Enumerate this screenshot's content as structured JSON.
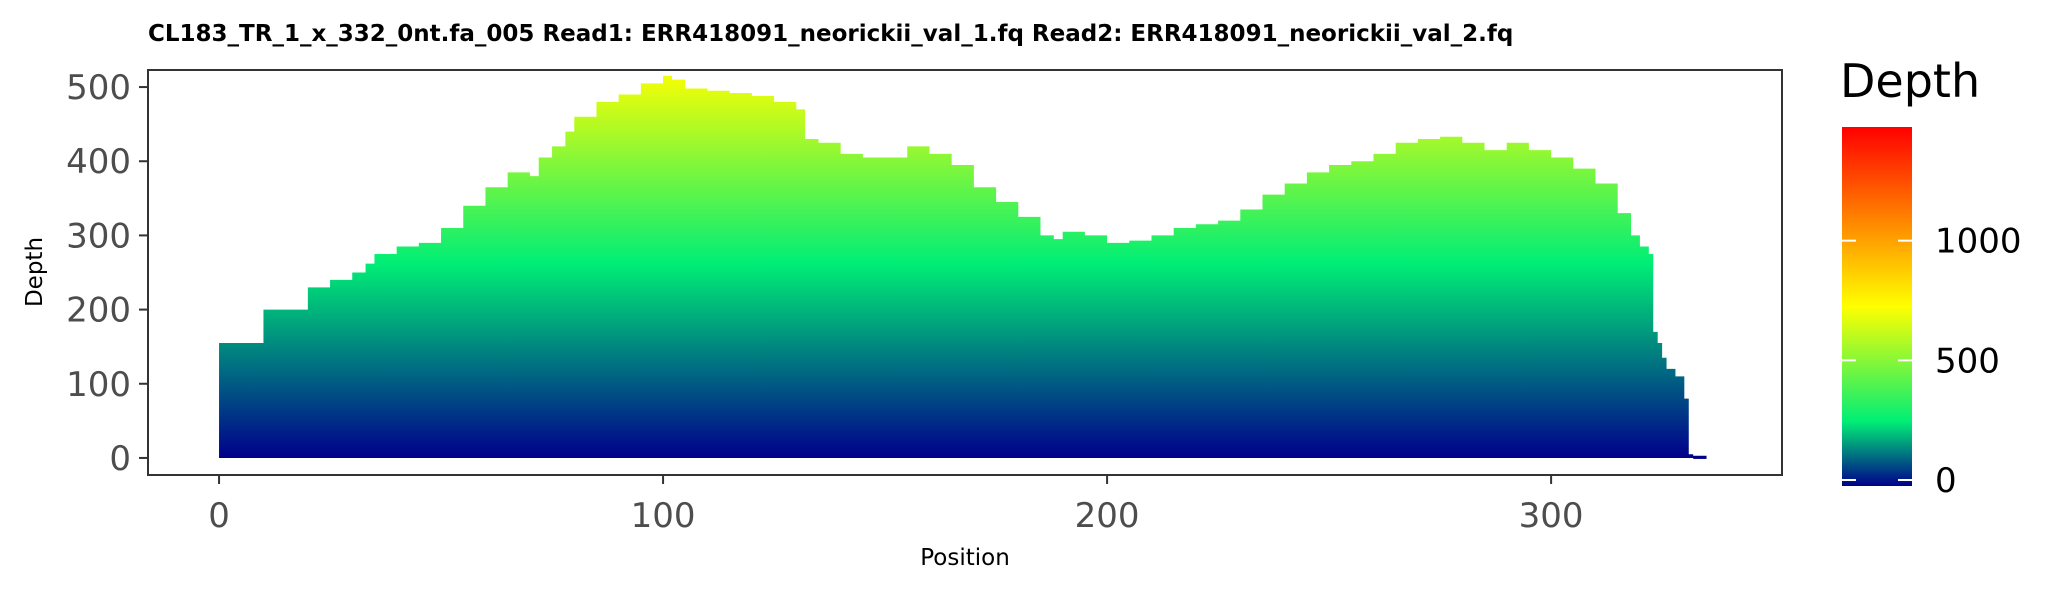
{
  "chart_data": {
    "type": "area",
    "title": "CL183_TR_1_x_332_0nt.fa_005   Read1: ERR418091_neorickii_val_1.fq   Read2: ERR418091_neorickii_val_2.fq",
    "xlabel": "Position",
    "ylabel": "Depth",
    "xlim": [
      -16,
      352
    ],
    "ylim": [
      -23,
      523
    ],
    "x_ticks": [
      0,
      100,
      200,
      300
    ],
    "y_ticks": [
      0,
      100,
      200,
      300,
      400,
      500
    ],
    "grid": false,
    "legend": {
      "title": "Depth",
      "placement": "right",
      "range": [
        0,
        1500
      ],
      "ticks": [
        0,
        500,
        1000
      ],
      "colors": [
        "#00008b",
        "#00ee76",
        "#ffff00",
        "#ff0000"
      ]
    },
    "fill_colors": {
      "low": "#00008b",
      "mid": "#00ee76",
      "high": "#ffff00",
      "max": "#ff0000"
    },
    "x": [
      0,
      10,
      20,
      25,
      30,
      33,
      35,
      40,
      45,
      50,
      55,
      60,
      65,
      70,
      72,
      75,
      78,
      80,
      85,
      90,
      95,
      100,
      102,
      105,
      110,
      115,
      120,
      125,
      130,
      132,
      135,
      140,
      145,
      150,
      155,
      160,
      165,
      170,
      175,
      180,
      185,
      188,
      190,
      195,
      200,
      205,
      210,
      215,
      220,
      225,
      230,
      235,
      240,
      245,
      250,
      255,
      260,
      265,
      270,
      275,
      280,
      285,
      290,
      295,
      300,
      305,
      310,
      315,
      318,
      320,
      322,
      323,
      324,
      325,
      326,
      328,
      330,
      331,
      332,
      335
    ],
    "y": [
      155,
      200,
      230,
      240,
      250,
      262,
      275,
      285,
      290,
      310,
      340,
      365,
      385,
      380,
      405,
      420,
      440,
      460,
      480,
      490,
      505,
      515,
      510,
      498,
      495,
      492,
      488,
      480,
      470,
      430,
      425,
      410,
      405,
      405,
      420,
      410,
      395,
      365,
      345,
      325,
      300,
      295,
      305,
      300,
      290,
      293,
      300,
      310,
      315,
      320,
      335,
      355,
      370,
      385,
      395,
      400,
      410,
      425,
      430,
      433,
      425,
      415,
      425,
      415,
      405,
      390,
      370,
      330,
      300,
      285,
      275,
      170,
      155,
      135,
      120,
      110,
      80,
      5,
      3,
      0
    ]
  }
}
